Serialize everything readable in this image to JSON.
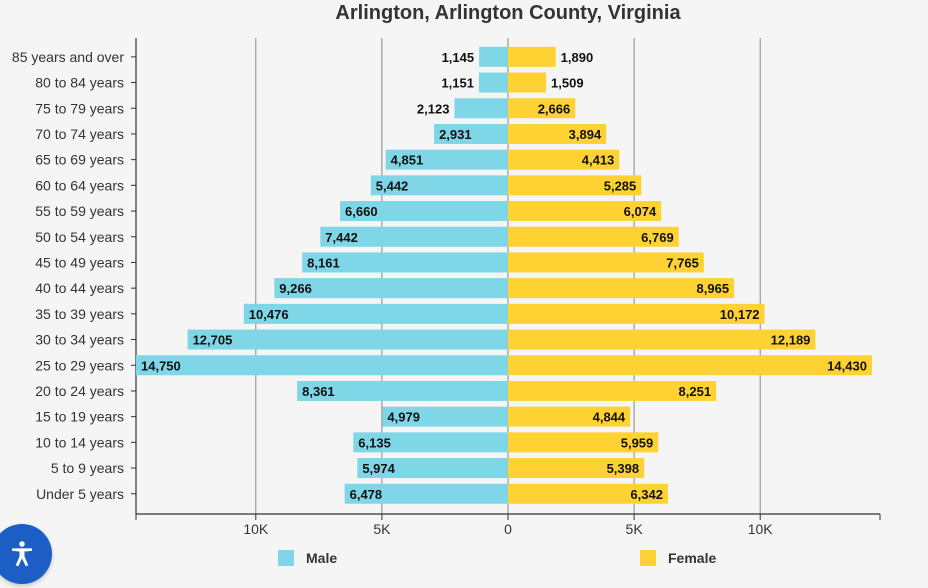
{
  "chart_data": {
    "type": "bar",
    "orientation": "horizontal-population-pyramid",
    "title": "Arlington, Arlington County, Virginia",
    "categories": [
      "85 years and over",
      "80 to 84 years",
      "75 to 79 years",
      "70 to 74 years",
      "65 to 69 years",
      "60 to 64 years",
      "55 to 59 years",
      "50 to 54 years",
      "45 to 49 years",
      "40 to 44 years",
      "35 to 39 years",
      "30 to 34 years",
      "25 to 29 years",
      "20 to 24 years",
      "15 to 19 years",
      "10 to 14 years",
      "5 to 9 years",
      "Under 5 years"
    ],
    "series": [
      {
        "name": "Male",
        "color": "#7fd6e6",
        "values": [
          1145,
          1151,
          2123,
          2931,
          4851,
          5442,
          6660,
          7442,
          8161,
          9266,
          10476,
          12705,
          14750,
          8361,
          4979,
          6135,
          5974,
          6478
        ],
        "labels": [
          "1,145",
          "1,151",
          "2,123",
          "2,931",
          "4,851",
          "5,442",
          "6,660",
          "7,442",
          "8,161",
          "9,266",
          "10,476",
          "12,705",
          "14,750",
          "8,361",
          "4,979",
          "6,135",
          "5,974",
          "6,478"
        ]
      },
      {
        "name": "Female",
        "color": "#ffd233",
        "values": [
          1890,
          1509,
          2666,
          3894,
          4413,
          5285,
          6074,
          6769,
          7765,
          8965,
          10172,
          12189,
          14430,
          8251,
          4844,
          5959,
          5398,
          6342
        ],
        "labels": [
          "1,890",
          "1,509",
          "2,666",
          "3,894",
          "4,413",
          "5,285",
          "6,074",
          "6,769",
          "7,765",
          "8,965",
          "10,172",
          "12,189",
          "14,430",
          "8,251",
          "4,844",
          "5,959",
          "5,398",
          "6,342"
        ]
      }
    ],
    "xlim": [
      -14750,
      14750
    ],
    "xticks": [
      {
        "value": -10000,
        "label": "10K"
      },
      {
        "value": -5000,
        "label": "5K"
      },
      {
        "value": 0,
        "label": "0"
      },
      {
        "value": 5000,
        "label": "5K"
      },
      {
        "value": 10000,
        "label": "10K"
      }
    ],
    "legend_position": "bottom"
  },
  "legend": {
    "male_label": "Male",
    "female_label": "Female",
    "male_color": "#7fd6e6",
    "female_color": "#ffd233"
  },
  "a11y": {
    "icon": "accessibility-icon"
  }
}
